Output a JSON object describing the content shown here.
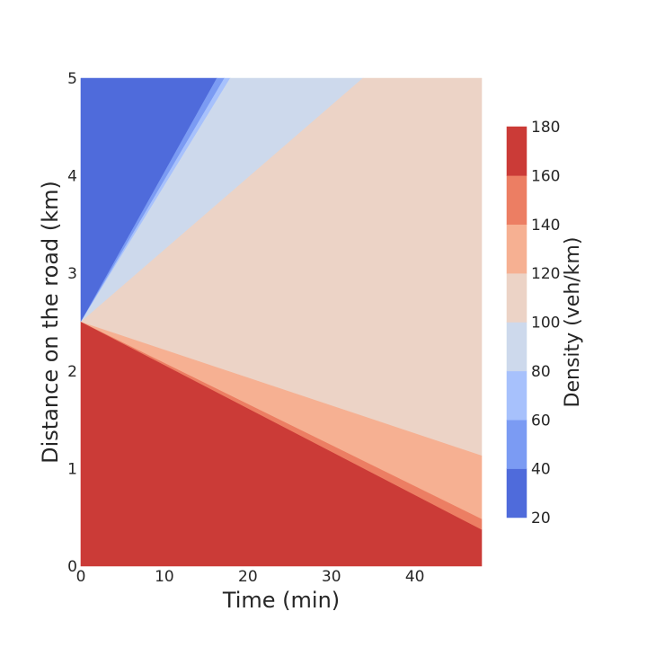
{
  "chart_data": {
    "type": "contour",
    "xlabel": "Time (min)",
    "ylabel": "Distance on the road (km)",
    "xlim": [
      0,
      48
    ],
    "ylim": [
      0,
      5
    ],
    "x_ticks": [
      0,
      10,
      20,
      30,
      40
    ],
    "y_ticks": [
      0,
      1,
      2,
      3,
      4,
      5
    ],
    "colorbar": {
      "label": "Density (veh/km)",
      "ticks": [
        20,
        40,
        60,
        80,
        100,
        120,
        140,
        160,
        180
      ],
      "levels": [
        {
          "from": 20,
          "to": 40,
          "color": "#4f6bdb"
        },
        {
          "from": 40,
          "to": 60,
          "color": "#7b9bf3"
        },
        {
          "from": 60,
          "to": 80,
          "color": "#a7c1fc"
        },
        {
          "from": 80,
          "to": 100,
          "color": "#cdd9ec"
        },
        {
          "from": 100,
          "to": 120,
          "color": "#ecd3c6"
        },
        {
          "from": 120,
          "to": 140,
          "color": "#f6b092"
        },
        {
          "from": 140,
          "to": 160,
          "color": "#ec7e63"
        },
        {
          "from": 160,
          "to": 180,
          "color": "#cb3b37"
        }
      ]
    },
    "regions": [
      {
        "level": "20-40",
        "color": "#4f6bdb",
        "points": [
          [
            0,
            2.5
          ],
          [
            0,
            5
          ],
          [
            16.3,
            5
          ]
        ]
      },
      {
        "level": "40-60",
        "color": "#7b9bf3",
        "points": [
          [
            0,
            2.5
          ],
          [
            16.3,
            5
          ],
          [
            17.2,
            5
          ]
        ]
      },
      {
        "level": "60-80",
        "color": "#a7c1fc",
        "points": [
          [
            0,
            2.5
          ],
          [
            17.2,
            5
          ],
          [
            17.9,
            5
          ]
        ]
      },
      {
        "level": "80-100",
        "color": "#cdd9ec",
        "points": [
          [
            0,
            2.5
          ],
          [
            17.9,
            5
          ],
          [
            33.8,
            5
          ]
        ]
      },
      {
        "level": "100-120",
        "color": "#ecd3c6",
        "points": [
          [
            0,
            2.5
          ],
          [
            33.8,
            5
          ],
          [
            48,
            5
          ],
          [
            48,
            1.13
          ]
        ]
      },
      {
        "level": "120-140",
        "color": "#f6b092",
        "points": [
          [
            0,
            2.5
          ],
          [
            48,
            1.13
          ],
          [
            48,
            0.48
          ]
        ]
      },
      {
        "level": "140-160",
        "color": "#ec7e63",
        "points": [
          [
            0,
            2.5
          ],
          [
            48,
            0.48
          ],
          [
            48,
            0.37
          ]
        ]
      },
      {
        "level": "160-180",
        "color": "#cb3b37",
        "points": [
          [
            0,
            2.5
          ],
          [
            48,
            0.37
          ],
          [
            48,
            0
          ],
          [
            0,
            0
          ]
        ]
      }
    ]
  }
}
